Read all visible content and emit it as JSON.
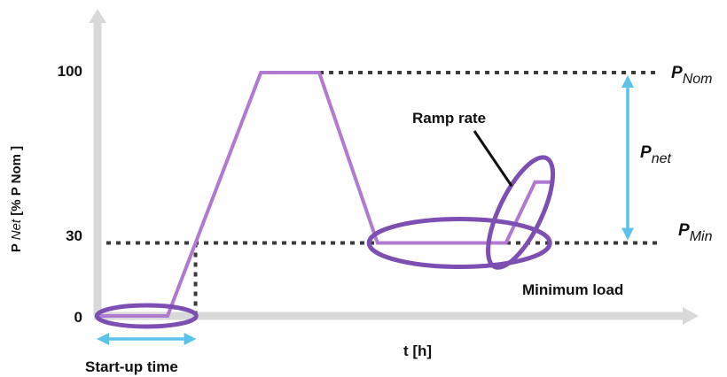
{
  "colors": {
    "axis": "#d9d9d9",
    "profile": "#b07ad0",
    "highlight": "#7d4fb3",
    "reference": "#3a3a3a",
    "arrow": "#5bc3ea",
    "text": "#111111"
  },
  "chart_data": {
    "type": "line",
    "xlabel": "t [h]",
    "ylabel": {
      "p": "P",
      "net": "Net",
      "rest": " [% P Nom ]"
    },
    "ylim": [
      0,
      100
    ],
    "xlim": [
      0,
      100
    ],
    "y_ticks": [
      "0",
      "30",
      "100"
    ],
    "grid": false,
    "series": [
      {
        "x": [
          0,
          12,
          28,
          38,
          48,
          70,
          75,
          78
        ],
        "y": [
          0,
          0,
          100,
          100,
          30,
          30,
          55,
          55
        ]
      }
    ],
    "reference_lines": [
      {
        "y": 100,
        "label_main": "P",
        "label_sub": "Nom"
      },
      {
        "y": 30,
        "label_main": "P",
        "label_sub": "Min"
      }
    ],
    "annotations": {
      "startup": "Start-up time",
      "ramp": "Ramp rate",
      "min_load": "Minimum load",
      "pnet_main": "P",
      "pnet_sub": "net"
    }
  }
}
